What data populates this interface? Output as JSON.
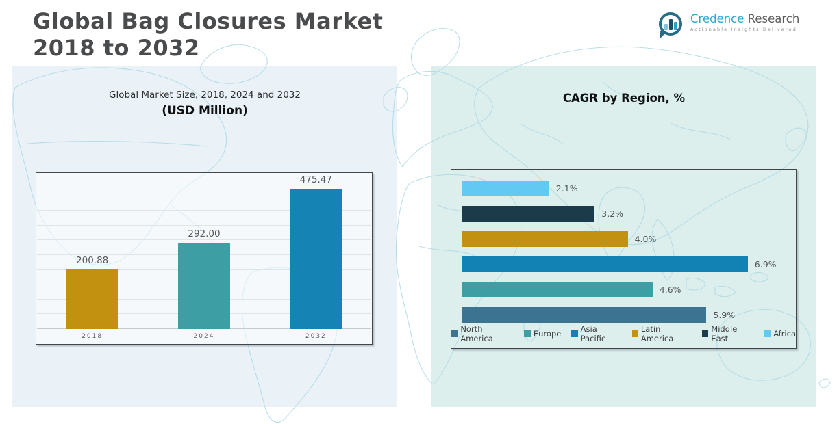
{
  "header": {
    "title_line1": "Global Bag Closures Market",
    "title_line2": "2018 to 2032"
  },
  "logo": {
    "icon": "bar-chart-speech-bubble-icon",
    "brand_primary": "Credence",
    "brand_secondary": "Research",
    "tagline": "Actionable Insights Delivered"
  },
  "colors": {
    "panel_left_bg": "#eaf2f8",
    "panel_right_bg": "#dcefed",
    "map_outline": "#aed9e6",
    "box_border": "#43474a",
    "label_text": "#565758",
    "gold": "#c39110",
    "teal": "#3d9fa3",
    "blue": "#1583b4",
    "steel_blue": "#3b7390",
    "dark_navy": "#1b3b4b",
    "sky_blue": "#62c9f3"
  },
  "chart_data": [
    {
      "type": "bar",
      "title": "Global Market Size, 2018, 2024 and 2032",
      "subtitle": "(USD Million)",
      "categories": [
        "2018",
        "2024",
        "2032"
      ],
      "values": [
        200.88,
        292.0,
        475.47
      ],
      "labels": [
        "200.88",
        "292.00",
        "475.47"
      ],
      "colors": [
        "#c39110",
        "#3d9fa3",
        "#1583b4"
      ],
      "xlabel": "",
      "ylabel": "",
      "ylim": [
        0,
        500
      ],
      "grid": true,
      "gridline_step": 50,
      "legend": false
    },
    {
      "type": "bar-horizontal",
      "title": "CAGR by Region, %",
      "rows": [
        {
          "region": "Africa",
          "value": 2.1,
          "label": "2.1%",
          "color": "#62c9f3"
        },
        {
          "region": "Middle East",
          "value": 3.2,
          "label": "3.2%",
          "color": "#1b3b4b"
        },
        {
          "region": "Latin America",
          "value": 4.0,
          "label": "4.0%",
          "color": "#c39110"
        },
        {
          "region": "Asia Pacific",
          "value": 6.9,
          "label": "6.9%",
          "color": "#1182b3"
        },
        {
          "region": "Europe",
          "value": 4.6,
          "label": "4.6%",
          "color": "#3d9fa3"
        },
        {
          "region": "North America",
          "value": 5.9,
          "label": "5.9%",
          "color": "#3b7390"
        }
      ],
      "xlim": [
        0,
        7.5
      ],
      "grid": false,
      "legend_position": "bottom",
      "legend": [
        {
          "label": "North America",
          "color": "#3b7390"
        },
        {
          "label": "Europe",
          "color": "#3d9fa3"
        },
        {
          "label": "Asia Pacific",
          "color": "#1182b3"
        },
        {
          "label": "Latin America",
          "color": "#c39110"
        },
        {
          "label": "Middle East",
          "color": "#1b3b4b"
        },
        {
          "label": "Africa",
          "color": "#62c9f3"
        }
      ]
    }
  ]
}
